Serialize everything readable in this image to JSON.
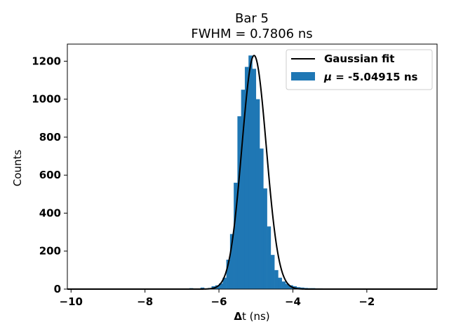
{
  "chart_data": {
    "type": "bar",
    "title": "Bar 5",
    "subtitle": "FWHM = 0.7806 ns",
    "xlabel_bold_part": "Δ",
    "xlabel_rest": "t (ns)",
    "ylabel": "Counts",
    "xlim": [
      -10.1,
      -0.1
    ],
    "ylim": [
      0,
      1290
    ],
    "xticks": [
      -10,
      -8,
      -6,
      -4,
      -2
    ],
    "xtick_labels": [
      "−10",
      "−8",
      "−6",
      "−4",
      "−2"
    ],
    "yticks": [
      0,
      200,
      400,
      600,
      800,
      1000,
      1200
    ],
    "ytick_labels": [
      "0",
      "200",
      "400",
      "600",
      "800",
      "1000",
      "1200"
    ],
    "grid": false,
    "legend_position": "top-right",
    "histogram": {
      "name": "μ = -5.04915 ns",
      "legend_symbol": "μ",
      "legend_rest": " = -5.04915 ns",
      "color": "#1f77b4",
      "bin_width": 0.1,
      "bin_left_edges": [
        -6.8,
        -6.5,
        -6.3,
        -6.2,
        -6.1,
        -6.0,
        -5.9,
        -5.8,
        -5.7,
        -5.6,
        -5.5,
        -5.4,
        -5.3,
        -5.2,
        -5.1,
        -5.0,
        -4.9,
        -4.8,
        -4.7,
        -4.6,
        -4.5,
        -4.4,
        -4.3,
        -4.2,
        -4.1,
        -4.0,
        -3.9,
        -3.8,
        -3.7,
        -3.6,
        -3.5,
        -3.4,
        -3.3,
        -3.2,
        -2.5
      ],
      "counts": [
        5,
        8,
        6,
        15,
        20,
        30,
        60,
        155,
        290,
        560,
        910,
        1050,
        1170,
        1230,
        1160,
        1000,
        740,
        530,
        330,
        180,
        100,
        60,
        40,
        28,
        20,
        15,
        10,
        8,
        6,
        5,
        5,
        4,
        4,
        3,
        3
      ]
    },
    "fit": {
      "name": "Gaussian fit",
      "color": "#000000",
      "mu": -5.04915,
      "fwhm": 0.7806,
      "amplitude": 1230
    }
  }
}
